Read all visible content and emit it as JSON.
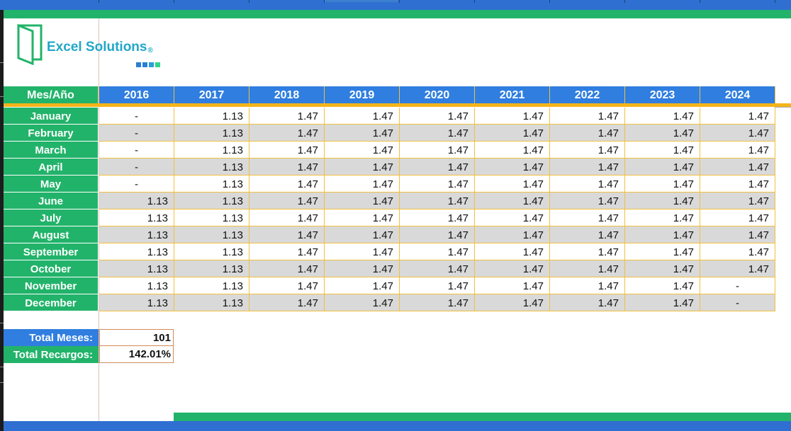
{
  "logo": {
    "name": "Excel Solutions",
    "reg_mark": "®",
    "dot_colors": [
      "#2a7fd4",
      "#2a7fd4",
      "#2a9fd4",
      "#2fd68a"
    ]
  },
  "colors": {
    "header_blue": "#2f7ee0",
    "month_green": "#22b36a",
    "border_gold": "#f0c040",
    "row_alt": "#d9d9d9"
  },
  "table": {
    "corner_label": "Mes/Año",
    "years": [
      "2016",
      "2017",
      "2018",
      "2019",
      "2020",
      "2021",
      "2022",
      "2023",
      "2024"
    ],
    "rows": [
      {
        "month": "January",
        "values": [
          "-",
          "1.13",
          "1.47",
          "1.47",
          "1.47",
          "1.47",
          "1.47",
          "1.47",
          "1.47"
        ]
      },
      {
        "month": "February",
        "values": [
          "-",
          "1.13",
          "1.47",
          "1.47",
          "1.47",
          "1.47",
          "1.47",
          "1.47",
          "1.47"
        ]
      },
      {
        "month": "March",
        "values": [
          "-",
          "1.13",
          "1.47",
          "1.47",
          "1.47",
          "1.47",
          "1.47",
          "1.47",
          "1.47"
        ]
      },
      {
        "month": "April",
        "values": [
          "-",
          "1.13",
          "1.47",
          "1.47",
          "1.47",
          "1.47",
          "1.47",
          "1.47",
          "1.47"
        ]
      },
      {
        "month": "May",
        "values": [
          "-",
          "1.13",
          "1.47",
          "1.47",
          "1.47",
          "1.47",
          "1.47",
          "1.47",
          "1.47"
        ]
      },
      {
        "month": "June",
        "values": [
          "1.13",
          "1.13",
          "1.47",
          "1.47",
          "1.47",
          "1.47",
          "1.47",
          "1.47",
          "1.47"
        ]
      },
      {
        "month": "July",
        "values": [
          "1.13",
          "1.13",
          "1.47",
          "1.47",
          "1.47",
          "1.47",
          "1.47",
          "1.47",
          "1.47"
        ]
      },
      {
        "month": "August",
        "values": [
          "1.13",
          "1.13",
          "1.47",
          "1.47",
          "1.47",
          "1.47",
          "1.47",
          "1.47",
          "1.47"
        ]
      },
      {
        "month": "September",
        "values": [
          "1.13",
          "1.13",
          "1.47",
          "1.47",
          "1.47",
          "1.47",
          "1.47",
          "1.47",
          "1.47"
        ]
      },
      {
        "month": "October",
        "values": [
          "1.13",
          "1.13",
          "1.47",
          "1.47",
          "1.47",
          "1.47",
          "1.47",
          "1.47",
          "1.47"
        ]
      },
      {
        "month": "November",
        "values": [
          "1.13",
          "1.13",
          "1.47",
          "1.47",
          "1.47",
          "1.47",
          "1.47",
          "1.47",
          "-"
        ]
      },
      {
        "month": "December",
        "values": [
          "1.13",
          "1.13",
          "1.47",
          "1.47",
          "1.47",
          "1.47",
          "1.47",
          "1.47",
          "-"
        ]
      }
    ]
  },
  "totals": {
    "meses_label": "Total Meses:",
    "meses_value": "101",
    "recargos_label": "Total Recargos:",
    "recargos_value": "142.01%"
  }
}
